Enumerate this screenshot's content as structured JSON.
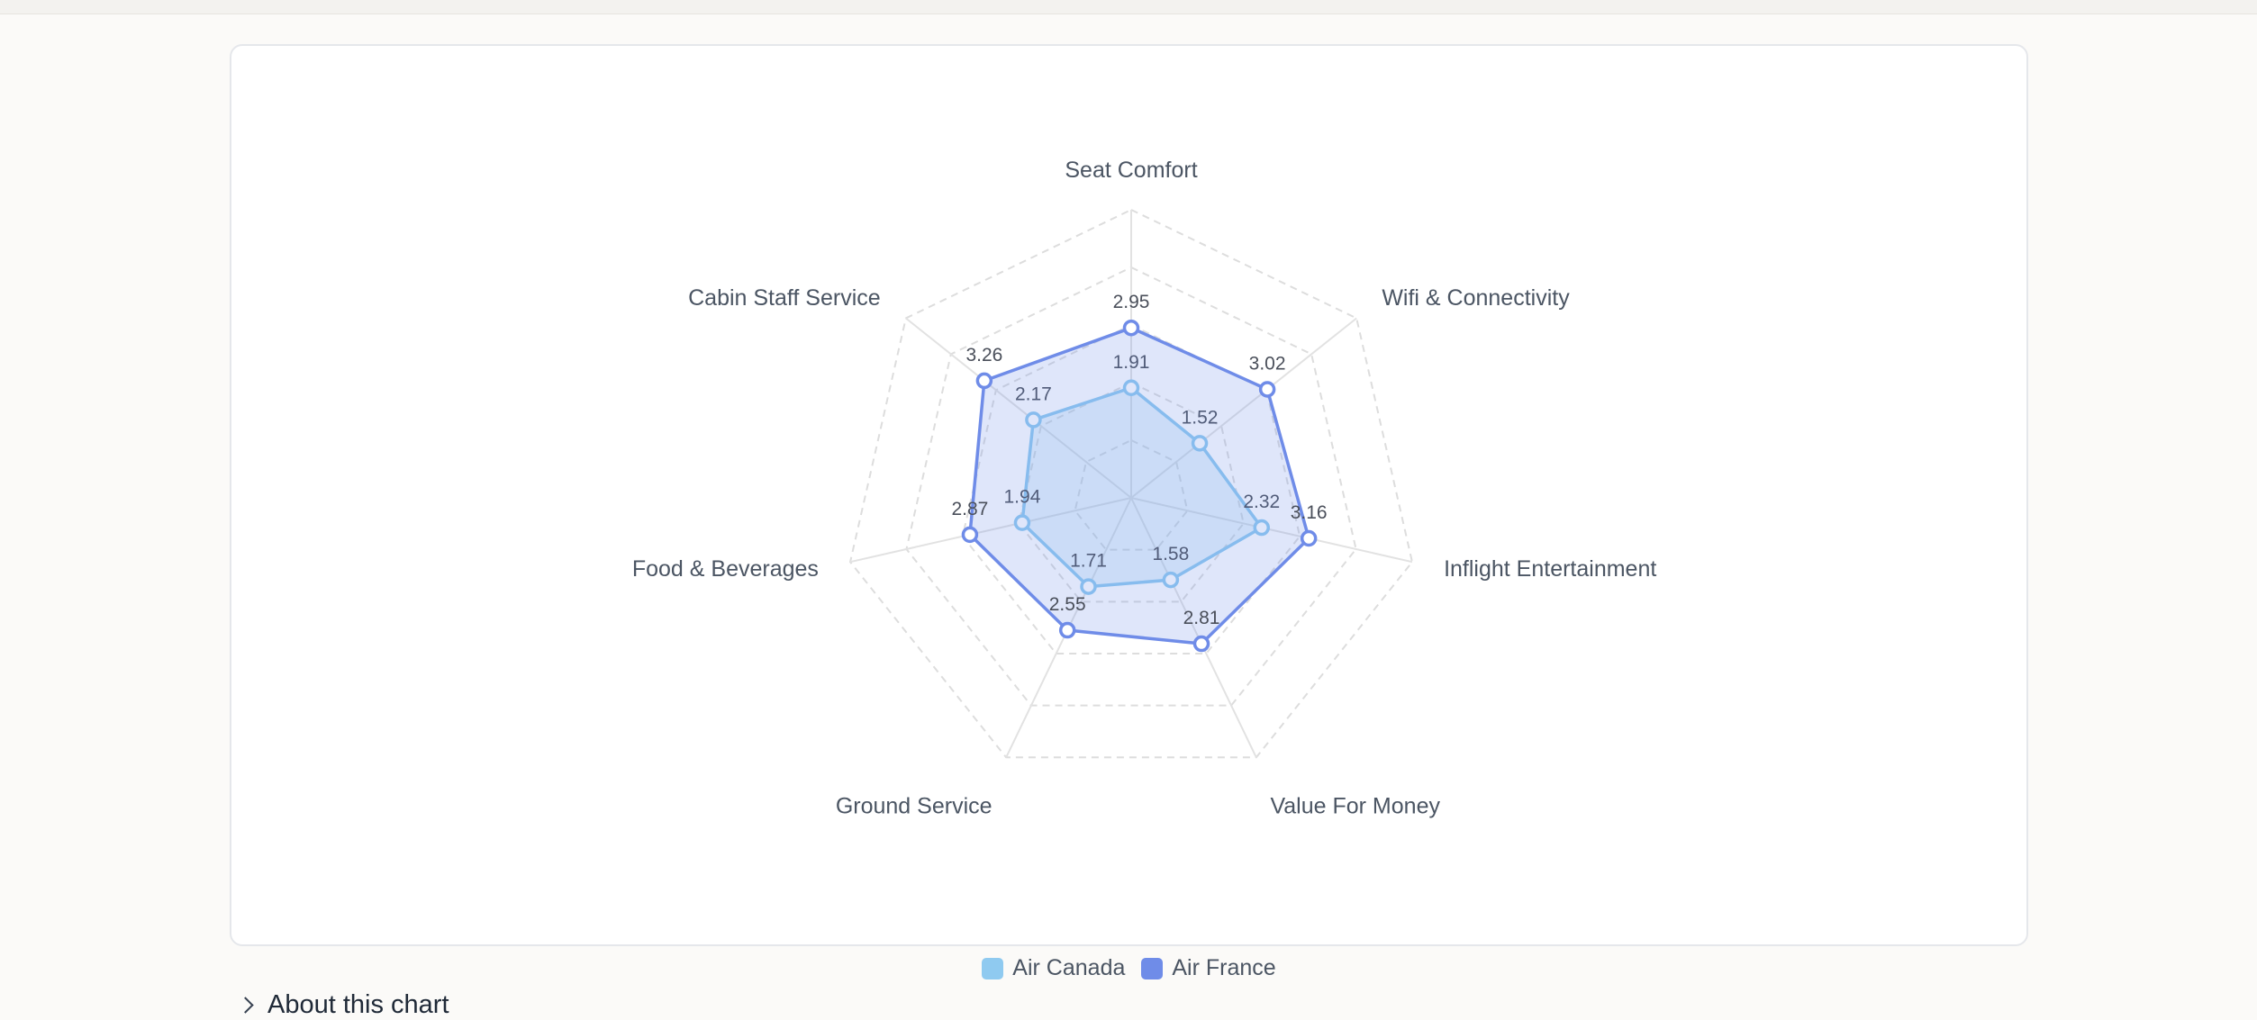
{
  "chart_data": {
    "type": "radar",
    "axes": [
      "Seat Comfort",
      "Wifi & Connectivity",
      "Inflight Entertainment",
      "Value For Money",
      "Ground Service",
      "Food & Beverages",
      "Cabin Staff Service"
    ],
    "rmax": 5,
    "rings": 5,
    "series": [
      {
        "name": "Air Canada",
        "color": "#8fcaf0",
        "values": [
          1.91,
          1.52,
          2.32,
          1.58,
          1.71,
          1.94,
          2.17
        ]
      },
      {
        "name": "Air France",
        "color": "#6f8ce8",
        "values": [
          2.95,
          3.02,
          3.16,
          2.81,
          2.55,
          2.87,
          3.26
        ]
      }
    ],
    "grid": true,
    "legend_position": "bottom-center"
  },
  "legend": {
    "items": [
      {
        "label": "Air Canada",
        "color": "#8fcaf0"
      },
      {
        "label": "Air France",
        "color": "#6f8ce8"
      }
    ]
  },
  "footer": {
    "about_label": "About this chart"
  }
}
